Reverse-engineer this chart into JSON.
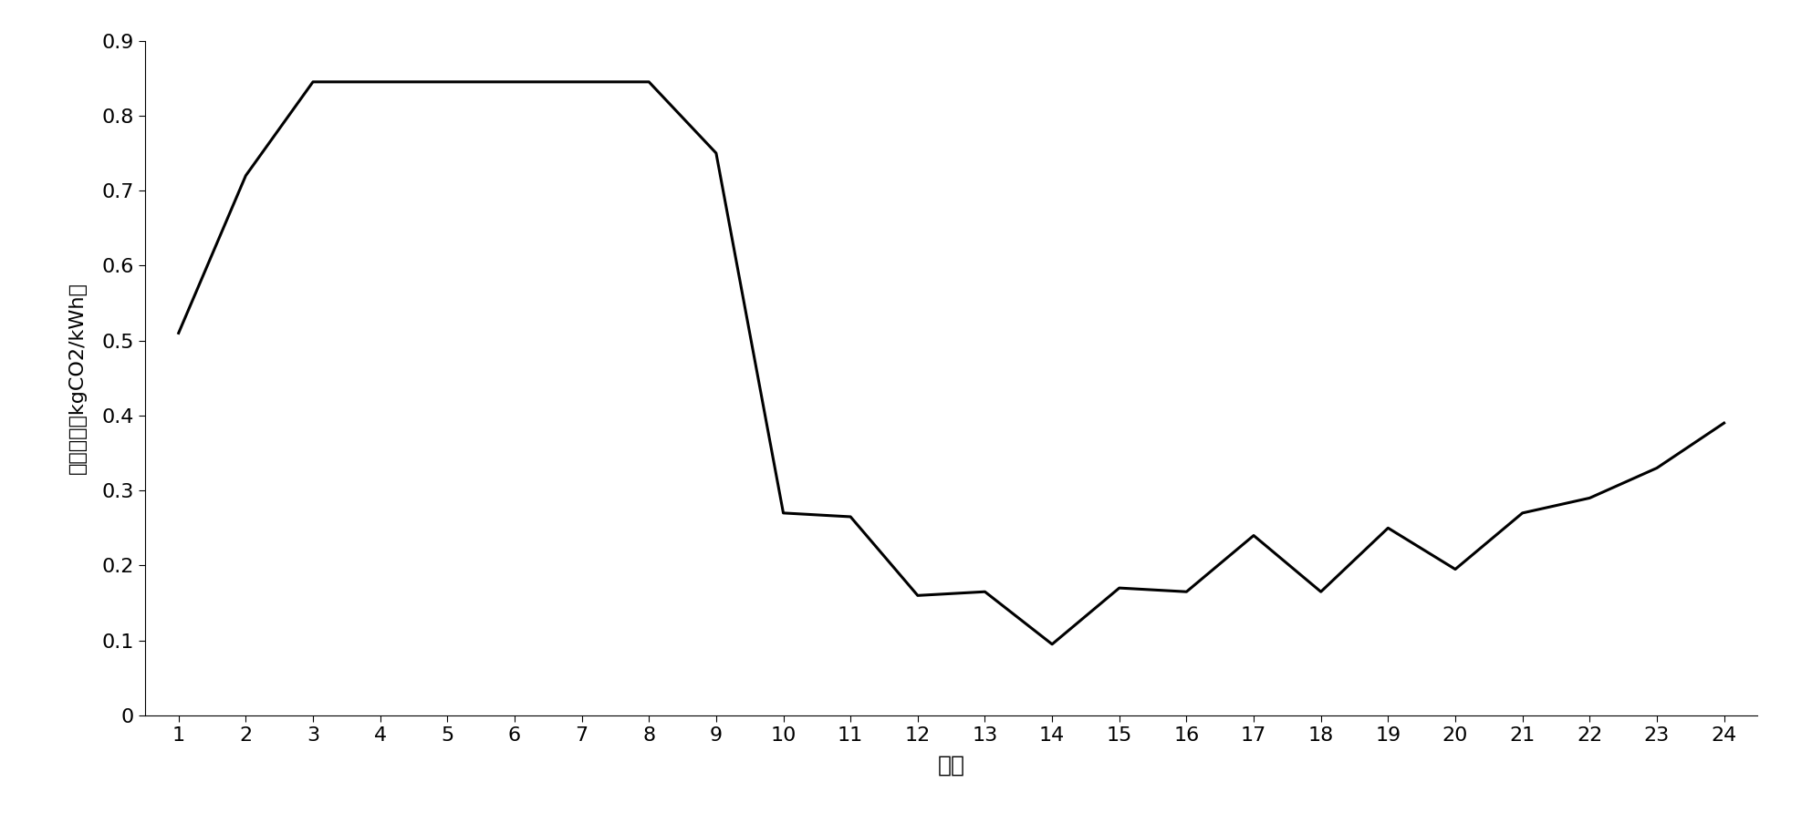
{
  "x": [
    1,
    2,
    3,
    4,
    5,
    6,
    7,
    8,
    9,
    10,
    11,
    12,
    13,
    14,
    15,
    16,
    17,
    18,
    19,
    20,
    21,
    22,
    23,
    24
  ],
  "y": [
    0.51,
    0.72,
    0.845,
    0.845,
    0.845,
    0.845,
    0.845,
    0.845,
    0.75,
    0.27,
    0.265,
    0.16,
    0.165,
    0.095,
    0.17,
    0.165,
    0.24,
    0.165,
    0.25,
    0.195,
    0.27,
    0.29,
    0.33,
    0.39
  ],
  "xlabel": "时段",
  "ylabel": "节点碳劢（kgCO2/kWh）",
  "ylim": [
    0,
    0.9
  ],
  "yticks": [
    0,
    0.1,
    0.2,
    0.3,
    0.4,
    0.5,
    0.6,
    0.7,
    0.8,
    0.9
  ],
  "ytick_labels": [
    "0",
    "0.1",
    "0.2",
    "0.3",
    "0.4",
    "0.5",
    "0.6",
    "0.7",
    "0.8",
    "0.9"
  ],
  "xticks": [
    1,
    2,
    3,
    4,
    5,
    6,
    7,
    8,
    9,
    10,
    11,
    12,
    13,
    14,
    15,
    16,
    17,
    18,
    19,
    20,
    21,
    22,
    23,
    24
  ],
  "line_color": "#000000",
  "line_width": 2.2,
  "background_color": "#ffffff",
  "xlabel_fontsize": 18,
  "ylabel_fontsize": 16,
  "tick_fontsize": 16
}
